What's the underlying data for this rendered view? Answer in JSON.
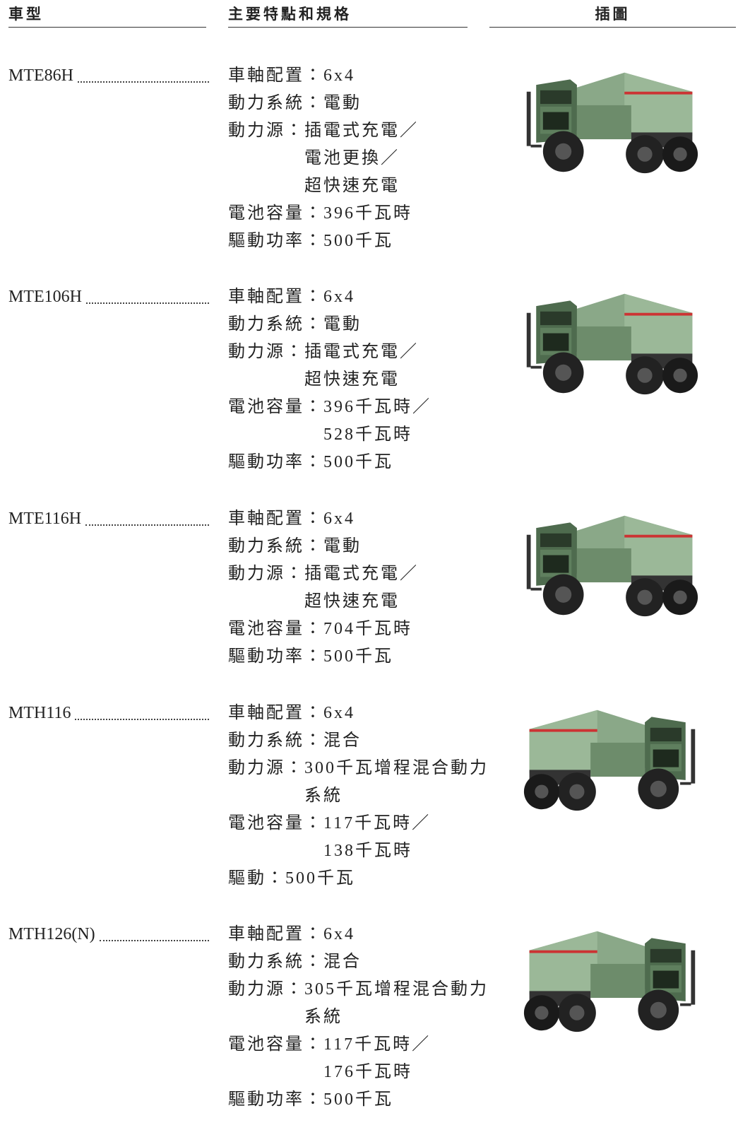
{
  "header": {
    "columns": [
      "車型",
      "主要特點和規格",
      "插圖"
    ]
  },
  "rows": [
    {
      "model": "MTE86H",
      "specs": [
        {
          "label": "車軸配置：",
          "values": [
            "6x4"
          ]
        },
        {
          "label": "動力系統：",
          "values": [
            "電動"
          ]
        },
        {
          "label": "動力源：",
          "values": [
            "插電式充電／",
            "電池更換／",
            "超快速充電"
          ]
        },
        {
          "label": "電池容量：",
          "values": [
            "396千瓦時"
          ]
        },
        {
          "label": "驅動功率：",
          "values": [
            "500千瓦"
          ]
        }
      ]
    },
    {
      "model": "MTE106H",
      "specs": [
        {
          "label": "車軸配置：",
          "values": [
            "6x4"
          ]
        },
        {
          "label": "動力系統：",
          "values": [
            "電動"
          ]
        },
        {
          "label": "動力源：",
          "values": [
            "插電式充電／",
            "超快速充電"
          ]
        },
        {
          "label": "電池容量：",
          "values": [
            "396千瓦時／",
            "528千瓦時"
          ]
        },
        {
          "label": "驅動功率：",
          "values": [
            "500千瓦"
          ]
        }
      ]
    },
    {
      "model": "MTE116H",
      "specs": [
        {
          "label": "車軸配置：",
          "values": [
            "6x4"
          ]
        },
        {
          "label": "動力系統：",
          "values": [
            "電動"
          ]
        },
        {
          "label": "動力源：",
          "values": [
            "插電式充電／",
            "超快速充電"
          ]
        },
        {
          "label": "電池容量：",
          "values": [
            "704千瓦時"
          ]
        },
        {
          "label": "驅動功率：",
          "values": [
            "500千瓦"
          ]
        }
      ]
    },
    {
      "model": "MTH116",
      "specs": [
        {
          "label": "車軸配置：",
          "values": [
            "6x4"
          ]
        },
        {
          "label": "動力系統：",
          "values": [
            "混合"
          ]
        },
        {
          "label": "動力源：",
          "values": [
            "300千瓦增程混合動力",
            "系統"
          ]
        },
        {
          "label": "電池容量：",
          "values": [
            "117千瓦時／",
            "138千瓦時"
          ]
        },
        {
          "label": "驅動：",
          "values": [
            "500千瓦"
          ]
        }
      ]
    },
    {
      "model": "MTH126(N)",
      "specs": [
        {
          "label": "車軸配置：",
          "values": [
            "6x4"
          ]
        },
        {
          "label": "動力系統：",
          "values": [
            "混合"
          ]
        },
        {
          "label": "動力源：",
          "values": [
            "305千瓦增程混合動力",
            "系統"
          ]
        },
        {
          "label": "電池容量：",
          "values": [
            "117千瓦時／",
            "176千瓦時"
          ]
        },
        {
          "label": "驅動功率：",
          "values": [
            "500千瓦"
          ]
        }
      ]
    }
  ]
}
